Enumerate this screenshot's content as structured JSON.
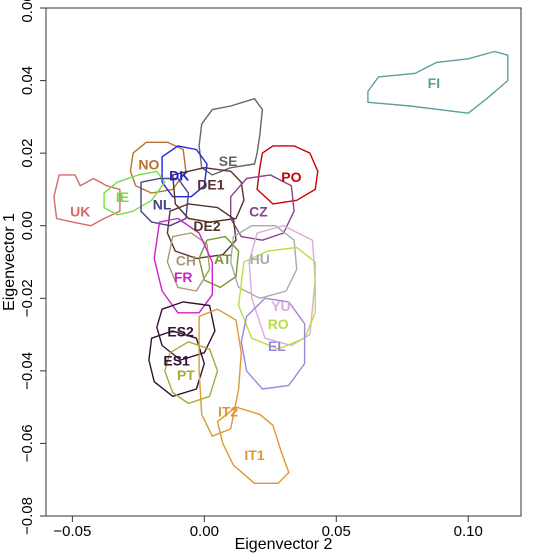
{
  "chart_data": {
    "type": "scatter",
    "xlabel": "Eigenvector 2",
    "ylabel": "Eigenvector 1",
    "xlim": [
      -0.06,
      0.12
    ],
    "ylim": [
      -0.08,
      0.06
    ],
    "xticks": [
      -0.05,
      0.0,
      0.05,
      0.1
    ],
    "xtick_labels": [
      "−0.05",
      "0.00",
      "0.05",
      "0.10"
    ],
    "yticks": [
      -0.08,
      -0.06,
      -0.04,
      -0.02,
      0.0,
      0.02,
      0.04,
      0.06
    ],
    "ytick_labels": [
      "−0.08",
      "−0.06",
      "−0.04",
      "−0.02",
      "0.00",
      "0.02",
      "0.04",
      "0.06"
    ],
    "grid": false,
    "legend": "none",
    "series": [
      {
        "name": "FI",
        "color": "#5f9ea0",
        "label_pos": [
          0.087,
          0.039
        ],
        "outline": [
          [
            0.062,
            0.037
          ],
          [
            0.066,
            0.041
          ],
          [
            0.08,
            0.042
          ],
          [
            0.088,
            0.045
          ],
          [
            0.1,
            0.046
          ],
          [
            0.11,
            0.048
          ],
          [
            0.115,
            0.047
          ],
          [
            0.115,
            0.04
          ],
          [
            0.107,
            0.035
          ],
          [
            0.1,
            0.031
          ],
          [
            0.078,
            0.033
          ],
          [
            0.062,
            0.034
          ]
        ]
      },
      {
        "name": "SE",
        "color": "#666666",
        "label_pos": [
          0.009,
          0.0175
        ],
        "outline": [
          [
            -0.001,
            0.028
          ],
          [
            0.003,
            0.032
          ],
          [
            0.01,
            0.033
          ],
          [
            0.019,
            0.035
          ],
          [
            0.022,
            0.032
          ],
          [
            0.021,
            0.025
          ],
          [
            0.02,
            0.02
          ],
          [
            0.019,
            0.017
          ],
          [
            0.01,
            0.016
          ],
          [
            0.003,
            0.014
          ],
          [
            -0.001,
            0.016
          ],
          [
            -0.002,
            0.022
          ]
        ]
      },
      {
        "name": "PO",
        "color": "#cc0000",
        "label_pos": [
          0.033,
          0.013
        ],
        "outline": [
          [
            0.022,
            0.02
          ],
          [
            0.026,
            0.022
          ],
          [
            0.034,
            0.022
          ],
          [
            0.04,
            0.02
          ],
          [
            0.043,
            0.015
          ],
          [
            0.042,
            0.01
          ],
          [
            0.035,
            0.007
          ],
          [
            0.026,
            0.006
          ],
          [
            0.02,
            0.01
          ],
          [
            0.021,
            0.016
          ]
        ]
      },
      {
        "name": "NO",
        "color": "#b8732d",
        "label_pos": [
          -0.021,
          0.0165
        ],
        "outline": [
          [
            -0.027,
            0.02
          ],
          [
            -0.022,
            0.023
          ],
          [
            -0.014,
            0.023
          ],
          [
            -0.008,
            0.021
          ],
          [
            -0.007,
            0.015
          ],
          [
            -0.012,
            0.01
          ],
          [
            -0.02,
            0.009
          ],
          [
            -0.026,
            0.011
          ],
          [
            -0.028,
            0.015
          ]
        ]
      },
      {
        "name": "DK",
        "color": "#2222dd",
        "label_pos": [
          -0.0095,
          0.0135
        ],
        "outline": [
          [
            -0.016,
            0.019
          ],
          [
            -0.01,
            0.022
          ],
          [
            -0.003,
            0.021
          ],
          [
            0.001,
            0.017
          ],
          [
            0.0,
            0.011
          ],
          [
            -0.005,
            0.008
          ],
          [
            -0.012,
            0.008
          ],
          [
            -0.016,
            0.012
          ]
        ]
      },
      {
        "name": "UK",
        "color": "#d46a6a",
        "label_pos": [
          -0.047,
          0.0035
        ],
        "outline": [
          [
            -0.057,
            0.008
          ],
          [
            -0.055,
            0.014
          ],
          [
            -0.049,
            0.014
          ],
          [
            -0.047,
            0.011
          ],
          [
            -0.042,
            0.013
          ],
          [
            -0.037,
            0.011
          ],
          [
            -0.032,
            0.01
          ],
          [
            -0.032,
            0.004
          ],
          [
            -0.038,
            0.002
          ],
          [
            -0.043,
            0.0
          ],
          [
            -0.05,
            0.001
          ],
          [
            -0.056,
            0.002
          ]
        ]
      },
      {
        "name": "IE",
        "color": "#77dd44",
        "label_pos": [
          -0.031,
          0.0075
        ],
        "outline": [
          [
            -0.038,
            0.009
          ],
          [
            -0.033,
            0.012
          ],
          [
            -0.025,
            0.014
          ],
          [
            -0.018,
            0.015
          ],
          [
            -0.015,
            0.012
          ],
          [
            -0.02,
            0.007
          ],
          [
            -0.027,
            0.004
          ],
          [
            -0.033,
            0.003
          ],
          [
            -0.038,
            0.005
          ]
        ]
      },
      {
        "name": "NL",
        "color": "#444488",
        "label_pos": [
          -0.016,
          0.0055
        ],
        "outline": [
          [
            -0.024,
            0.012
          ],
          [
            -0.017,
            0.013
          ],
          [
            -0.01,
            0.013
          ],
          [
            -0.006,
            0.009
          ],
          [
            -0.007,
            0.002
          ],
          [
            -0.013,
            0.0
          ],
          [
            -0.02,
            0.001
          ],
          [
            -0.024,
            0.004
          ]
        ]
      },
      {
        "name": "DE1",
        "color": "#55332b",
        "label_pos": [
          0.0025,
          0.011
        ],
        "outline": [
          [
            -0.012,
            0.014
          ],
          [
            0.0,
            0.016
          ],
          [
            0.01,
            0.015
          ],
          [
            0.014,
            0.012
          ],
          [
            0.015,
            0.007
          ],
          [
            0.012,
            0.002
          ],
          [
            0.002,
            0.001
          ],
          [
            -0.006,
            0.002
          ],
          [
            -0.011,
            0.006
          ]
        ]
      },
      {
        "name": "CZ",
        "color": "#884488",
        "label_pos": [
          0.0205,
          0.0035
        ],
        "outline": [
          [
            0.01,
            0.008
          ],
          [
            0.016,
            0.013
          ],
          [
            0.025,
            0.014
          ],
          [
            0.033,
            0.011
          ],
          [
            0.034,
            0.004
          ],
          [
            0.03,
            -0.002
          ],
          [
            0.022,
            -0.004
          ],
          [
            0.014,
            -0.003
          ],
          [
            0.01,
            0.002
          ]
        ]
      },
      {
        "name": "DE2",
        "color": "#55332b",
        "label_pos": [
          0.001,
          -0.0005
        ],
        "outline": [
          [
            -0.013,
            0.004
          ],
          [
            -0.006,
            0.006
          ],
          [
            0.005,
            0.005
          ],
          [
            0.011,
            0.002
          ],
          [
            0.012,
            -0.004
          ],
          [
            0.007,
            -0.008
          ],
          [
            -0.003,
            -0.009
          ],
          [
            -0.011,
            -0.007
          ],
          [
            -0.014,
            -0.002
          ]
        ]
      },
      {
        "name": "HU",
        "color": "#aaaaaa",
        "label_pos": [
          0.021,
          -0.0095
        ],
        "outline": [
          [
            0.011,
            -0.003
          ],
          [
            0.018,
            0.0
          ],
          [
            0.027,
            0.0
          ],
          [
            0.034,
            -0.004
          ],
          [
            0.035,
            -0.012
          ],
          [
            0.031,
            -0.018
          ],
          [
            0.021,
            -0.02
          ],
          [
            0.013,
            -0.017
          ],
          [
            0.01,
            -0.01
          ]
        ]
      },
      {
        "name": "AT",
        "color": "#779933",
        "label_pos": [
          0.007,
          -0.0095
        ],
        "outline": [
          [
            0.001,
            -0.004
          ],
          [
            0.008,
            -0.003
          ],
          [
            0.013,
            -0.007
          ],
          [
            0.012,
            -0.014
          ],
          [
            0.006,
            -0.017
          ],
          [
            0.0,
            -0.015
          ],
          [
            -0.002,
            -0.009
          ]
        ]
      },
      {
        "name": "CH",
        "color": "#aa9977",
        "label_pos": [
          -0.007,
          -0.01
        ],
        "outline": [
          [
            -0.012,
            -0.003
          ],
          [
            -0.005,
            -0.002
          ],
          [
            0.001,
            -0.005
          ],
          [
            0.002,
            -0.012
          ],
          [
            -0.003,
            -0.018
          ],
          [
            -0.01,
            -0.017
          ],
          [
            -0.014,
            -0.01
          ]
        ]
      },
      {
        "name": "FR",
        "color": "#cc22cc",
        "label_pos": [
          -0.008,
          -0.0145
        ],
        "outline": [
          [
            -0.017,
            0.001
          ],
          [
            -0.01,
            0.002
          ],
          [
            -0.002,
            -0.002
          ],
          [
            0.003,
            -0.01
          ],
          [
            0.003,
            -0.019
          ],
          [
            -0.002,
            -0.024
          ],
          [
            -0.01,
            -0.024
          ],
          [
            -0.016,
            -0.018
          ],
          [
            -0.019,
            -0.009
          ]
        ]
      },
      {
        "name": "YU",
        "color": "#ddaadd",
        "label_pos": [
          0.029,
          -0.0225
        ],
        "outline": [
          [
            0.02,
            -0.002
          ],
          [
            0.03,
            0.0
          ],
          [
            0.041,
            -0.004
          ],
          [
            0.042,
            -0.015
          ],
          [
            0.04,
            -0.03
          ],
          [
            0.033,
            -0.033
          ],
          [
            0.023,
            -0.031
          ],
          [
            0.018,
            -0.02
          ],
          [
            0.017,
            -0.01
          ]
        ]
      },
      {
        "name": "RO",
        "color": "#bbdd44",
        "label_pos": [
          0.028,
          -0.0275
        ],
        "outline": [
          [
            0.015,
            -0.01
          ],
          [
            0.024,
            -0.007
          ],
          [
            0.035,
            -0.006
          ],
          [
            0.042,
            -0.01
          ],
          [
            0.042,
            -0.024
          ],
          [
            0.038,
            -0.031
          ],
          [
            0.028,
            -0.034
          ],
          [
            0.018,
            -0.031
          ],
          [
            0.013,
            -0.022
          ]
        ]
      },
      {
        "name": "EL",
        "color": "#9988dd",
        "label_pos": [
          0.0275,
          -0.0335
        ],
        "outline": [
          [
            0.016,
            -0.025
          ],
          [
            0.023,
            -0.02
          ],
          [
            0.032,
            -0.021
          ],
          [
            0.038,
            -0.027
          ],
          [
            0.038,
            -0.038
          ],
          [
            0.032,
            -0.044
          ],
          [
            0.022,
            -0.045
          ],
          [
            0.016,
            -0.04
          ],
          [
            0.014,
            -0.032
          ]
        ]
      },
      {
        "name": "ES2",
        "color": "#331133",
        "label_pos": [
          -0.009,
          -0.0295
        ],
        "outline": [
          [
            -0.016,
            -0.023
          ],
          [
            -0.008,
            -0.021
          ],
          [
            0.002,
            -0.022
          ],
          [
            0.004,
            -0.029
          ],
          [
            0.0,
            -0.035
          ],
          [
            -0.009,
            -0.037
          ],
          [
            -0.016,
            -0.033
          ],
          [
            -0.018,
            -0.028
          ]
        ]
      },
      {
        "name": "ES1",
        "color": "#331133",
        "label_pos": [
          -0.0105,
          -0.0375
        ],
        "outline": [
          [
            -0.02,
            -0.031
          ],
          [
            -0.012,
            -0.029
          ],
          [
            -0.003,
            -0.031
          ],
          [
            0.0,
            -0.038
          ],
          [
            -0.003,
            -0.045
          ],
          [
            -0.012,
            -0.047
          ],
          [
            -0.019,
            -0.043
          ],
          [
            -0.021,
            -0.037
          ]
        ]
      },
      {
        "name": "PT",
        "color": "#aaaa33",
        "label_pos": [
          -0.007,
          -0.0415
        ],
        "outline": [
          [
            -0.013,
            -0.035
          ],
          [
            -0.006,
            -0.032
          ],
          [
            0.002,
            -0.034
          ],
          [
            0.005,
            -0.04
          ],
          [
            0.002,
            -0.047
          ],
          [
            -0.006,
            -0.049
          ],
          [
            -0.012,
            -0.046
          ],
          [
            -0.015,
            -0.04
          ]
        ]
      },
      {
        "name": "IT2",
        "color": "#dd9933",
        "label_pos": [
          0.009,
          -0.0515
        ],
        "outline": [
          [
            -0.002,
            -0.025
          ],
          [
            0.005,
            -0.023
          ],
          [
            0.012,
            -0.026
          ],
          [
            0.014,
            -0.035
          ],
          [
            0.013,
            -0.045
          ],
          [
            0.01,
            -0.056
          ],
          [
            0.003,
            -0.058
          ],
          [
            -0.001,
            -0.052
          ],
          [
            -0.002,
            -0.04
          ]
        ]
      },
      {
        "name": "IT1",
        "color": "#dd9933",
        "label_pos": [
          0.019,
          -0.0635
        ],
        "outline": [
          [
            0.005,
            -0.054
          ],
          [
            0.012,
            -0.05
          ],
          [
            0.021,
            -0.052
          ],
          [
            0.026,
            -0.055
          ],
          [
            0.029,
            -0.062
          ],
          [
            0.032,
            -0.068
          ],
          [
            0.028,
            -0.071
          ],
          [
            0.019,
            -0.071
          ],
          [
            0.011,
            -0.066
          ],
          [
            0.007,
            -0.06
          ]
        ]
      }
    ]
  }
}
